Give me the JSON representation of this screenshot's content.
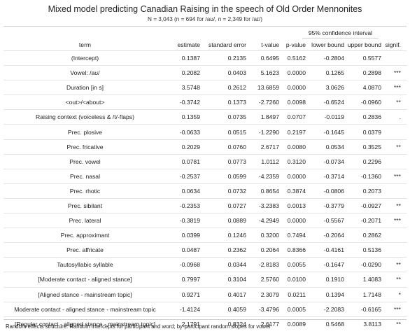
{
  "title": "Mixed model predicting Canadian Raising in the speech of Old Order Mennonites",
  "subtitle": "N = 3,043 (n = 694 for /aʊ/, n = 2,349 for /aɪ/)",
  "spanner": "95% confidence interval",
  "columns": {
    "term": "term",
    "estimate": "estimate",
    "se": "standard error",
    "t": "t-value",
    "p": "p-value",
    "lower": "lower bound",
    "upper": "upper bound",
    "signif": "signif."
  },
  "rows": [
    {
      "term": "(Intercept)",
      "estimate": "0.1387",
      "se": "0.2135",
      "t": "0.6495",
      "p": "0.5162",
      "lower": "-0.2804",
      "upper": "0.5577",
      "signif": ""
    },
    {
      "term": "Vowel: /aʊ/",
      "estimate": "0.2082",
      "se": "0.0403",
      "t": "5.1623",
      "p": "0.0000",
      "lower": "0.1265",
      "upper": "0.2898",
      "signif": "***"
    },
    {
      "term": "Duration [in s]",
      "estimate": "3.5748",
      "se": "0.2612",
      "t": "13.6859",
      "p": "0.0000",
      "lower": "3.0626",
      "upper": "4.0870",
      "signif": "***"
    },
    {
      "term": "<out>/<about>",
      "estimate": "-0.3742",
      "se": "0.1373",
      "t": "-2.7260",
      "p": "0.0098",
      "lower": "-0.6524",
      "upper": "-0.0960",
      "signif": "**"
    },
    {
      "term": "Raising context (voiceless & /t/-flaps)",
      "estimate": "0.1359",
      "se": "0.0735",
      "t": "1.8497",
      "p": "0.0707",
      "lower": "-0.0119",
      "upper": "0.2836",
      "signif": "."
    },
    {
      "term": "Prec. plosive",
      "estimate": "-0.0633",
      "se": "0.0515",
      "t": "-1.2290",
      "p": "0.2197",
      "lower": "-0.1645",
      "upper": "0.0379",
      "signif": ""
    },
    {
      "term": "Prec. fricative",
      "estimate": "0.2029",
      "se": "0.0760",
      "t": "2.6717",
      "p": "0.0080",
      "lower": "0.0534",
      "upper": "0.3525",
      "signif": "**"
    },
    {
      "term": "Prec. vowel",
      "estimate": "0.0781",
      "se": "0.0773",
      "t": "1.0112",
      "p": "0.3120",
      "lower": "-0.0734",
      "upper": "0.2296",
      "signif": ""
    },
    {
      "term": "Prec. nasal",
      "estimate": "-0.2537",
      "se": "0.0599",
      "t": "-4.2359",
      "p": "0.0000",
      "lower": "-0.3714",
      "upper": "-0.1360",
      "signif": "***"
    },
    {
      "term": "Prec. rhotic",
      "estimate": "0.0634",
      "se": "0.0732",
      "t": "0.8654",
      "p": "0.3874",
      "lower": "-0.0806",
      "upper": "0.2073",
      "signif": ""
    },
    {
      "term": "Prec. sibilant",
      "estimate": "-0.2353",
      "se": "0.0727",
      "t": "-3.2383",
      "p": "0.0013",
      "lower": "-0.3779",
      "upper": "-0.0927",
      "signif": "**"
    },
    {
      "term": "Prec. lateral",
      "estimate": "-0.3819",
      "se": "0.0889",
      "t": "-4.2949",
      "p": "0.0000",
      "lower": "-0.5567",
      "upper": "-0.2071",
      "signif": "***"
    },
    {
      "term": "Prec. approximant",
      "estimate": "0.0399",
      "se": "0.1246",
      "t": "0.3200",
      "p": "0.7494",
      "lower": "-0.2064",
      "upper": "0.2862",
      "signif": ""
    },
    {
      "term": "Prec. affricate",
      "estimate": "0.0487",
      "se": "0.2362",
      "t": "0.2064",
      "p": "0.8366",
      "lower": "-0.4161",
      "upper": "0.5136",
      "signif": ""
    },
    {
      "term": "Tautosyllabic syllable",
      "estimate": "-0.0968",
      "se": "0.0344",
      "t": "-2.8183",
      "p": "0.0055",
      "lower": "-0.1647",
      "upper": "-0.0290",
      "signif": "**"
    },
    {
      "term": "[Moderate contact - aligned stance]",
      "estimate": "0.7997",
      "se": "0.3104",
      "t": "2.5760",
      "p": "0.0100",
      "lower": "0.1910",
      "upper": "1.4083",
      "signif": "**"
    },
    {
      "term": "[Aligned stance - mainstream topic]",
      "estimate": "0.9271",
      "se": "0.4017",
      "t": "2.3079",
      "p": "0.0211",
      "lower": "0.1394",
      "upper": "1.7148",
      "signif": "*"
    },
    {
      "term": "Moderate contact - aligned stance - mainstream topic",
      "estimate": "-1.4124",
      "se": "0.4059",
      "t": "-3.4796",
      "p": "0.0005",
      "lower": "-2.2083",
      "upper": "-0.6165",
      "signif": "***"
    },
    {
      "term": "[Regular contact - aligned stance - mainstream topic]",
      "estimate": "2.1791",
      "se": "0.8324",
      "t": "2.6177",
      "p": "0.0089",
      "lower": "0.5468",
      "upper": "3.8113",
      "signif": "**"
    }
  ],
  "footnote": "Random effects structure: Random intercepts for participant and word; by-participant random slopes for vowel"
}
